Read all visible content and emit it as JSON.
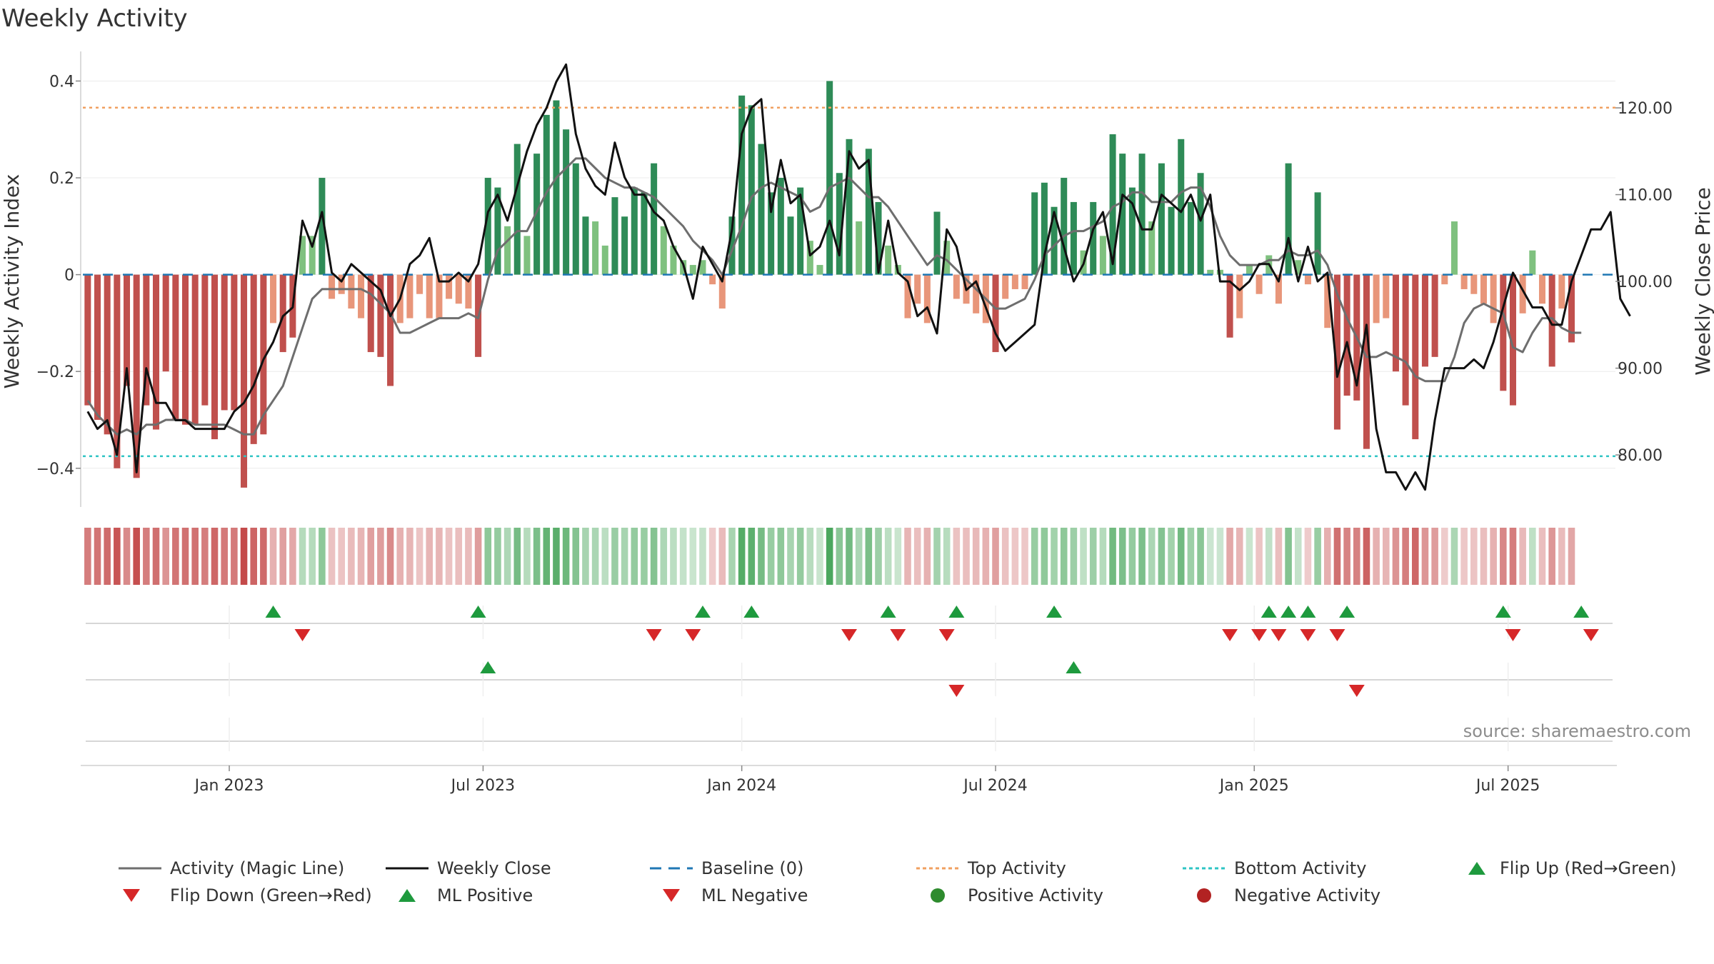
{
  "header": {
    "title": "Weekly Activity",
    "source": "source: sharemaestro.com"
  },
  "colors": {
    "strong_green": "#2e8b57",
    "light_green": "#7fc17f",
    "strong_red": "#c0504d",
    "light_red": "#e8967a",
    "magic_line": "#6e6e6e",
    "close": "#111111",
    "baseline": "#1f77b4",
    "top": "#f0a060",
    "bottom": "#2ec4c4",
    "marker_up": "#1e9a3e",
    "marker_down": "#d62728"
  },
  "chart_data": {
    "type": "bar",
    "title": "Weekly Activity",
    "ylabel": "Weekly Activity Index",
    "y2label": "Weekly Close Price",
    "ylim": [
      -0.48,
      0.47
    ],
    "y2lim": [
      74,
      127
    ],
    "yticks": [
      {
        "v": 0.4,
        "label": "0.4"
      },
      {
        "v": 0.2,
        "label": "0.2"
      },
      {
        "v": 0,
        "label": "0"
      },
      {
        "v": -0.2,
        "label": "−0.2"
      },
      {
        "v": -0.4,
        "label": "−0.4"
      }
    ],
    "y2ticks": [
      {
        "v": 120,
        "label": "120.00"
      },
      {
        "v": 110,
        "label": "110.00"
      },
      {
        "v": 100,
        "label": "100.00"
      },
      {
        "v": 90,
        "label": "90.00"
      },
      {
        "v": 80,
        "label": "80.00"
      }
    ],
    "xticks": [
      {
        "week": 14.5,
        "label": "Jan 2023"
      },
      {
        "week": 40.5,
        "label": "Jul 2023"
      },
      {
        "week": 67,
        "label": "Jan 2024"
      },
      {
        "week": 93,
        "label": "Jul 2024"
      },
      {
        "week": 119.5,
        "label": "Jan 2025"
      },
      {
        "week": 145.5,
        "label": "Jul 2025"
      }
    ],
    "top_level": 0.345,
    "bottom_level": -0.375,
    "weeks": 157,
    "activity": [
      -0.27,
      -0.3,
      -0.33,
      -0.4,
      -0.23,
      -0.42,
      -0.27,
      -0.32,
      -0.2,
      -0.3,
      -0.31,
      -0.31,
      -0.27,
      -0.34,
      -0.28,
      -0.28,
      -0.44,
      -0.35,
      -0.33,
      -0.1,
      -0.16,
      -0.13,
      0.08,
      0.08,
      0.2,
      -0.05,
      -0.04,
      -0.07,
      -0.09,
      -0.16,
      -0.17,
      -0.23,
      -0.1,
      -0.09,
      -0.04,
      -0.09,
      -0.09,
      -0.05,
      -0.06,
      -0.07,
      -0.17,
      0.2,
      0.18,
      0.1,
      0.27,
      0.08,
      0.25,
      0.33,
      0.36,
      0.3,
      0.23,
      0.12,
      0.11,
      0.06,
      0.16,
      0.12,
      0.18,
      0.17,
      0.23,
      0.1,
      0.06,
      0.03,
      0.02,
      0.03,
      -0.02,
      -0.07,
      0.12,
      0.37,
      0.35,
      0.27,
      0.17,
      0.2,
      0.12,
      0.18,
      0.07,
      0.02,
      0.4,
      0.21,
      0.28,
      0.11,
      0.26,
      0.15,
      0.06,
      0.02,
      -0.09,
      -0.06,
      -0.1,
      0.13,
      0.07,
      -0.05,
      -0.06,
      -0.08,
      -0.1,
      -0.16,
      -0.05,
      -0.03,
      -0.03,
      0.17,
      0.19,
      0.14,
      0.2,
      0.15,
      0.05,
      0.15,
      0.08,
      0.29,
      0.25,
      0.18,
      0.25,
      0.11,
      0.23,
      0.14,
      0.28,
      0.15,
      0.21,
      0.01,
      0.01,
      -0.13,
      -0.09,
      0.02,
      -0.04,
      0.04,
      -0.06,
      0.23,
      0.03,
      -0.02,
      0.17,
      -0.11,
      -0.32,
      -0.25,
      -0.26,
      -0.36,
      -0.1,
      -0.09,
      -0.2,
      -0.27,
      -0.34,
      -0.19,
      -0.17,
      -0.02,
      0.11,
      -0.03,
      -0.04,
      -0.06,
      -0.1,
      -0.24,
      -0.27,
      -0.08,
      0.05,
      -0.06,
      -0.19,
      -0.07,
      -0.14
    ],
    "magic_line": [
      -0.26,
      -0.29,
      -0.31,
      -0.33,
      -0.32,
      -0.33,
      -0.31,
      -0.31,
      -0.3,
      -0.3,
      -0.3,
      -0.31,
      -0.31,
      -0.31,
      -0.31,
      -0.32,
      -0.33,
      -0.33,
      -0.29,
      -0.26,
      -0.23,
      -0.17,
      -0.11,
      -0.05,
      -0.03,
      -0.03,
      -0.03,
      -0.03,
      -0.03,
      -0.04,
      -0.06,
      -0.08,
      -0.12,
      -0.12,
      -0.11,
      -0.1,
      -0.09,
      -0.09,
      -0.09,
      -0.08,
      -0.09,
      -0.01,
      0.05,
      0.07,
      0.09,
      0.09,
      0.13,
      0.17,
      0.2,
      0.22,
      0.24,
      0.24,
      0.22,
      0.2,
      0.19,
      0.18,
      0.18,
      0.17,
      0.16,
      0.14,
      0.12,
      0.1,
      0.07,
      0.05,
      0.03,
      0.0,
      0.05,
      0.1,
      0.16,
      0.18,
      0.19,
      0.18,
      0.17,
      0.16,
      0.13,
      0.14,
      0.18,
      0.19,
      0.2,
      0.18,
      0.16,
      0.16,
      0.14,
      0.11,
      0.08,
      0.05,
      0.02,
      0.04,
      0.03,
      0.01,
      -0.01,
      -0.03,
      -0.05,
      -0.07,
      -0.07,
      -0.06,
      -0.05,
      -0.01,
      0.04,
      0.06,
      0.08,
      0.09,
      0.09,
      0.1,
      0.11,
      0.14,
      0.15,
      0.17,
      0.17,
      0.15,
      0.15,
      0.15,
      0.17,
      0.18,
      0.18,
      0.14,
      0.08,
      0.04,
      0.02,
      0.02,
      0.02,
      0.03,
      0.03,
      0.05,
      0.04,
      0.04,
      0.05,
      0.02,
      -0.04,
      -0.09,
      -0.13,
      -0.17,
      -0.17,
      -0.16,
      -0.17,
      -0.18,
      -0.21,
      -0.22,
      -0.22,
      -0.22,
      -0.17,
      -0.1,
      -0.07,
      -0.06,
      -0.07,
      -0.08,
      -0.15,
      -0.16,
      -0.12,
      -0.09,
      -0.09,
      -0.11,
      -0.12,
      -0.12
    ],
    "weekly_close": [
      85,
      83,
      84,
      80,
      90,
      78,
      90,
      86,
      86,
      84,
      84,
      83,
      83,
      83,
      83,
      85,
      86,
      88,
      91,
      93,
      96,
      97,
      107,
      104,
      108,
      101,
      100,
      102,
      101,
      100,
      99,
      96,
      98,
      102,
      103,
      105,
      100,
      100,
      101,
      100,
      102,
      108,
      110,
      107,
      111,
      115,
      118,
      120,
      123,
      125,
      117,
      113,
      111,
      110,
      116,
      112,
      110,
      110,
      108,
      107,
      104,
      102,
      98,
      104,
      102,
      100,
      106,
      117,
      120,
      121,
      108,
      114,
      109,
      110,
      103,
      104,
      107,
      103,
      115,
      113,
      114,
      101,
      107,
      101,
      100,
      96,
      97,
      94,
      106,
      104,
      99,
      100,
      97,
      94,
      92,
      93,
      94,
      95,
      103,
      108,
      104,
      100,
      102,
      106,
      108,
      102,
      110,
      109,
      106,
      106,
      110,
      109,
      108,
      110,
      107,
      110,
      100,
      100,
      99,
      100,
      102,
      102,
      100,
      105,
      100,
      104,
      100,
      101,
      89,
      93,
      88,
      95,
      83,
      78,
      78,
      76,
      78,
      76,
      84,
      90,
      90,
      90,
      91,
      90,
      93,
      97,
      101,
      99,
      97,
      97,
      95,
      95,
      100,
      103,
      106,
      106,
      108,
      98,
      96
    ],
    "flip_up": [
      19,
      40,
      63,
      68,
      82,
      89,
      99,
      121,
      123,
      125,
      129,
      145,
      153
    ],
    "flip_down": [
      22,
      58,
      62,
      78,
      83,
      88,
      117,
      120,
      122,
      125,
      128,
      146,
      154
    ],
    "ml_positive": [
      41,
      101
    ],
    "ml_negative": [
      89,
      130
    ]
  },
  "legend": {
    "magic_line": "Activity (Magic Line)",
    "weekly_close": "Weekly Close",
    "baseline": "Baseline (0)",
    "top": "Top Activity",
    "bottom": "Bottom Activity",
    "flip_up": "Flip Up (Red→Green)",
    "flip_down": "Flip Down (Green→Red)",
    "ml_positive": "ML Positive",
    "ml_negative": "ML Negative",
    "pos_activity": "Positive Activity",
    "neg_activity": "Negative Activity"
  }
}
